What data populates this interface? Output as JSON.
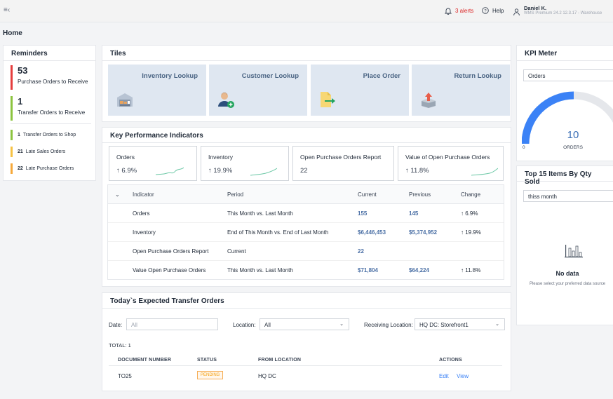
{
  "topbar": {
    "menu_icon": "menu-collapse-icon",
    "alerts_label": "3 alerts",
    "help_label": "Help",
    "user_name": "Daniel K.",
    "user_subtitle": "WMS Premium 24.2 12.3.17 - Warehouse"
  },
  "page": {
    "title": "Home"
  },
  "reminders": {
    "title": "Reminders",
    "big": [
      {
        "count": "53",
        "label": "Purchase Orders to Receive",
        "color": "#e53e3e"
      },
      {
        "count": "1",
        "label": "Transfer Orders to Receive",
        "color": "#8cc43f"
      }
    ],
    "small": [
      {
        "count": "1",
        "label": "Transfer Orders to Shop",
        "color": "#8cc43f"
      },
      {
        "count": "21",
        "label": "Late Sales Orders",
        "color": "#f6c244"
      },
      {
        "count": "22",
        "label": "Late Purchase Orders",
        "color": "#f6a93b"
      }
    ]
  },
  "tiles": {
    "title": "Tiles",
    "items": [
      {
        "label": "Inventory Lookup",
        "icon": "warehouse-icon"
      },
      {
        "label": "Customer Lookup",
        "icon": "add-customer-icon"
      },
      {
        "label": "Place Order",
        "icon": "document-arrow-icon"
      },
      {
        "label": "Return Lookup",
        "icon": "box-return-icon"
      }
    ]
  },
  "kpi": {
    "title": "Key Performance Indicators",
    "cards": [
      {
        "title": "Orders",
        "value": "6.9%"
      },
      {
        "title": "Inventory",
        "value": "19.9%"
      },
      {
        "title": "Open Purchase Orders Report",
        "value": "22"
      },
      {
        "title": "Value of Open Purchase Orders",
        "value": "11.8%"
      }
    ],
    "table": {
      "headers": {
        "indicator": "Indicator",
        "period": "Period",
        "current": "Current",
        "previous": "Previous",
        "change": "Change"
      },
      "rows": [
        {
          "indicator": "Orders",
          "period": "This Month vs. Last Month",
          "current": "155",
          "previous": "145",
          "change": "6.9%"
        },
        {
          "indicator": "Inventory",
          "period": "End of This Month vs. End of Last Month",
          "current": "$6,446,453",
          "previous": "$5,374,952",
          "change": "19.9%"
        },
        {
          "indicator": "Open Purchase Orders Report",
          "period": "Current",
          "current": "22",
          "previous": "",
          "change": ""
        },
        {
          "indicator": "Value Open Purchase Orders",
          "period": "This Month vs. Last Month",
          "current": "$71,804",
          "previous": "$64,224",
          "change": "11.8%"
        }
      ]
    }
  },
  "transfers": {
    "title": "Today`s Expected Transfer Orders",
    "date_label": "Date:",
    "date_placeholder": "All",
    "location_label": "Location:",
    "location_value": "All",
    "receiving_label": "Receiving Location:",
    "receiving_value": "HQ DC: Storefront1",
    "total_label": "TOTAL: 1",
    "headers": {
      "doc": "DOCUMENT NUMBER",
      "status": "STATUS",
      "from": "FROM LOCATION",
      "actions": "ACTIONS"
    },
    "rows": [
      {
        "doc": "TO25",
        "status": "PENDING",
        "from": "HQ DC",
        "edit": "Edit",
        "view": "View"
      }
    ]
  },
  "kpi_meter": {
    "title": "KPI Meter",
    "select_value": "Orders",
    "gauge_value": "10",
    "gauge_unit": "ORDERS",
    "gauge_min": "0",
    "gauge_fraction": 0.5,
    "colors": {
      "fill": "#3b82f6",
      "track": "#e5e7eb"
    }
  },
  "top_items": {
    "title": "Top 15 Items By Qty Sold",
    "select_value": "thiss month",
    "no_data_title": "No data",
    "no_data_text": "Please select your preferred data source"
  }
}
